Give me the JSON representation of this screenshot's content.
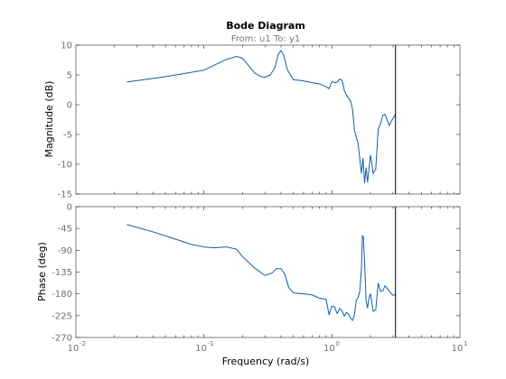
{
  "header": {
    "title": "Bode Diagram",
    "subtitle": "From: u1  To: y1"
  },
  "axes": {
    "magnitude_ylabel": "Magnitude (dB)",
    "phase_ylabel": "Phase (deg)",
    "xlabel": "Frequency  (rad/s)",
    "x_tick_exponents": [
      "-2",
      "-1",
      "0",
      "1"
    ]
  },
  "colors": {
    "trace": "#0e5fa8",
    "marker": "#000000"
  },
  "chart_data": [
    {
      "type": "line",
      "name": "magnitude",
      "xscale": "log",
      "xlim": [
        0.01,
        10
      ],
      "ylim": [
        -15,
        10
      ],
      "yticks": [
        10,
        5,
        0,
        -5,
        -10,
        -15
      ],
      "ylabel": "Magnitude (dB)",
      "vline": 3.14,
      "x": [
        0.025,
        0.05,
        0.1,
        0.15,
        0.18,
        0.2,
        0.25,
        0.28,
        0.3,
        0.33,
        0.36,
        0.38,
        0.4,
        0.42,
        0.45,
        0.5,
        0.6,
        0.7,
        0.8,
        0.9,
        0.95,
        1.0,
        1.05,
        1.1,
        1.15,
        1.2,
        1.25,
        1.3,
        1.4,
        1.45,
        1.5,
        1.6,
        1.7,
        1.75,
        1.8,
        1.85,
        1.9,
        2.0,
        2.05,
        2.1,
        2.2,
        2.3,
        2.4,
        2.5,
        2.6,
        2.8,
        3.0,
        3.14
      ],
      "y": [
        3.8,
        4.7,
        5.8,
        7.6,
        8.1,
        7.8,
        5.3,
        4.7,
        4.6,
        5.0,
        6.3,
        8.4,
        9.1,
        8.3,
        5.8,
        4.2,
        4.0,
        3.7,
        3.5,
        3.0,
        2.7,
        3.9,
        3.7,
        3.8,
        4.3,
        4.1,
        2.4,
        1.6,
        0.6,
        -0.8,
        -4.3,
        -6.5,
        -11.5,
        -9.0,
        -13.1,
        -10.6,
        -13.0,
        -8.5,
        -9.8,
        -11.6,
        -10.8,
        -4.1,
        -3.2,
        -1.8,
        -1.6,
        -3.5,
        -2.3,
        -1.6
      ]
    },
    {
      "type": "line",
      "name": "phase",
      "xscale": "log",
      "xlim": [
        0.01,
        10
      ],
      "ylim": [
        -270,
        0
      ],
      "yticks": [
        0,
        -45,
        -90,
        -135,
        -180,
        -225,
        -270
      ],
      "ylabel": "Phase (deg)",
      "xlabel": "Frequency  (rad/s)",
      "vline": 3.14,
      "x": [
        0.025,
        0.04,
        0.06,
        0.08,
        0.1,
        0.12,
        0.15,
        0.18,
        0.2,
        0.25,
        0.3,
        0.34,
        0.37,
        0.4,
        0.43,
        0.46,
        0.5,
        0.6,
        0.7,
        0.8,
        0.9,
        0.95,
        1.0,
        1.05,
        1.1,
        1.15,
        1.2,
        1.25,
        1.3,
        1.35,
        1.4,
        1.45,
        1.5,
        1.55,
        1.6,
        1.65,
        1.7,
        1.73,
        1.76,
        1.8,
        1.85,
        1.9,
        1.95,
        2.0,
        2.05,
        2.1,
        2.2,
        2.3,
        2.4,
        2.5,
        2.6,
        2.8,
        3.0,
        3.14
      ],
      "y": [
        -37,
        -52,
        -67,
        -78,
        -83,
        -85,
        -83,
        -88,
        -103,
        -127,
        -142,
        -137,
        -128,
        -128,
        -140,
        -167,
        -178,
        -180,
        -182,
        -189,
        -191,
        -223,
        -205,
        -207,
        -221,
        -210,
        -215,
        -226,
        -218,
        -222,
        -230,
        -235,
        -223,
        -193,
        -188,
        -175,
        -130,
        -60,
        -62,
        -115,
        -195,
        -209,
        -188,
        -180,
        -197,
        -216,
        -213,
        -158,
        -175,
        -174,
        -163,
        -174,
        -183,
        -182
      ]
    }
  ]
}
